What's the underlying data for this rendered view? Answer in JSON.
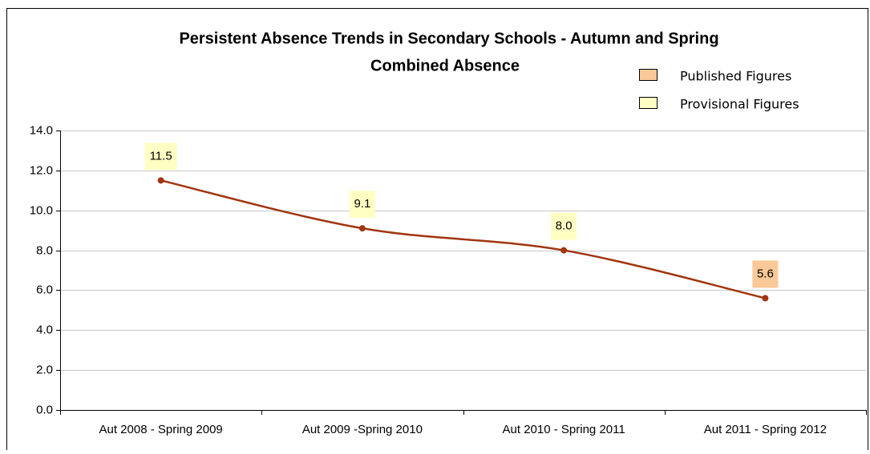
{
  "chart_data": {
    "type": "line",
    "title_lines": [
      "Persistent Absence Trends in Secondary Schools - Autumn and Spring",
      "Combined Absence"
    ],
    "categories": [
      "Aut 2008 - Spring 2009",
      "Aut 2009 -Spring 2010",
      "Aut 2010 - Spring 2011",
      "Aut 2011 - Spring 2012"
    ],
    "values": [
      11.5,
      9.1,
      8.0,
      5.6
    ],
    "value_labels": [
      "11.5",
      "9.1",
      "8.0",
      "5.6"
    ],
    "color": "#a0360f",
    "label_colors": [
      "#ffffc4",
      "#ffffc4",
      "#ffffc4",
      "#fbc897"
    ],
    "legend": [
      {
        "name": "Published Figures",
        "color": "#fbc897"
      },
      {
        "name": "Provisional Figures",
        "color": "#ffffc4"
      }
    ],
    "ylim": [
      0,
      14
    ],
    "yticks": [
      {
        "value": 0,
        "label": "0.0"
      },
      {
        "value": 2,
        "label": "2.0"
      },
      {
        "value": 4,
        "label": "4.0"
      },
      {
        "value": 6,
        "label": "6.0"
      },
      {
        "value": 8,
        "label": "8.0"
      },
      {
        "value": 10,
        "label": "10.0"
      },
      {
        "value": 12,
        "label": "12.0"
      },
      {
        "value": 14,
        "label": "14.0"
      }
    ],
    "grid": true
  }
}
